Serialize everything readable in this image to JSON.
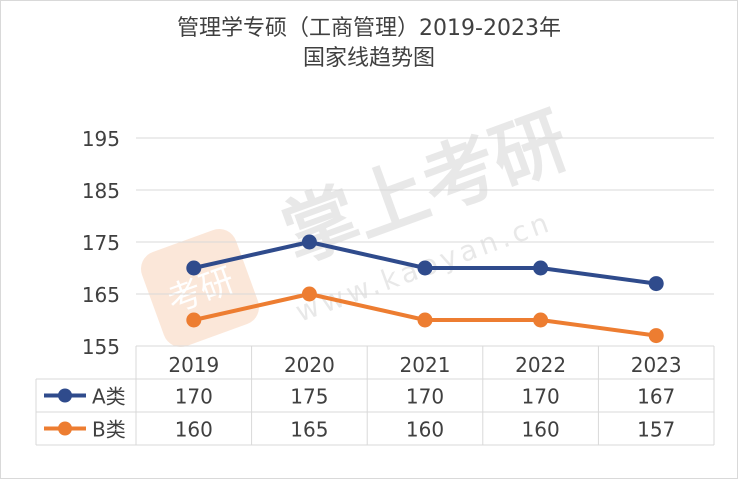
{
  "chart_data": {
    "type": "line",
    "title": "管理学专硕（工商管理）2019-2023年",
    "subtitle": "国家线趋势图",
    "categories": [
      "2019",
      "2020",
      "2021",
      "2022",
      "2023"
    ],
    "series": [
      {
        "name": "A类",
        "values": [
          170,
          175,
          170,
          170,
          167
        ],
        "color": "#2f4b8c"
      },
      {
        "name": "B类",
        "values": [
          160,
          165,
          160,
          160,
          157
        ],
        "color": "#ed7d31"
      }
    ],
    "ylim": [
      155,
      195
    ],
    "yticks": [
      155,
      165,
      175,
      185,
      195
    ],
    "grid": true,
    "data_table": true,
    "legend": "data-table"
  },
  "watermark": {
    "brand": "掌上考研",
    "url": "www.kaoyan.cn",
    "logo_text": "考研"
  }
}
